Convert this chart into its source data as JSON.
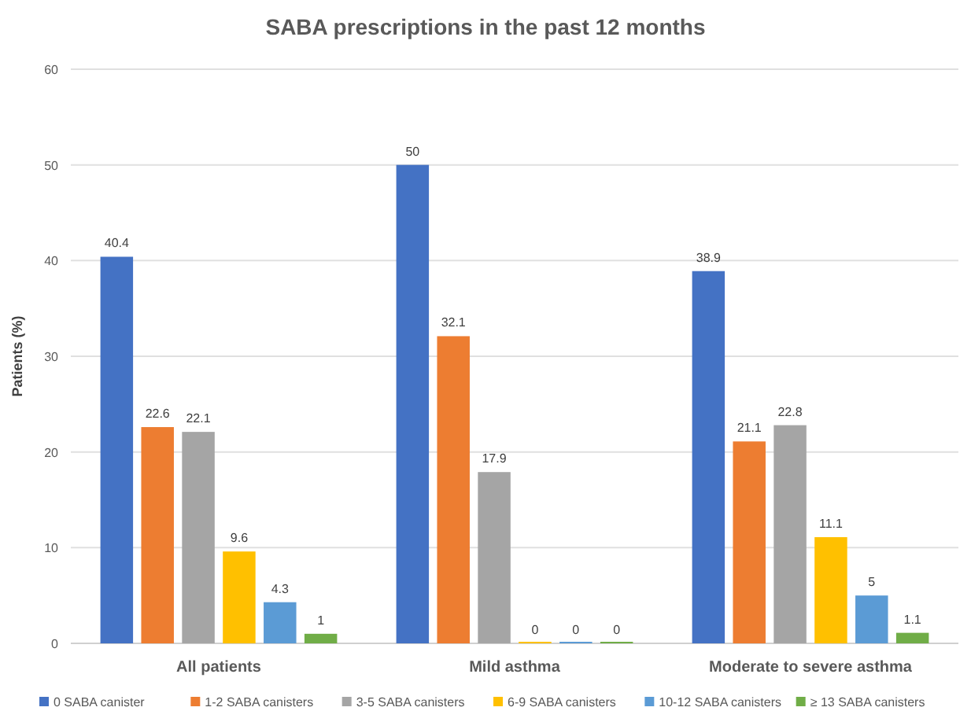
{
  "chart_data": {
    "type": "bar",
    "title": "SABA prescriptions in the past 12 months",
    "ylabel": "Patients (%)",
    "categories": [
      "All patients",
      "Mild asthma",
      "Moderate to severe asthma"
    ],
    "series": [
      {
        "name": "0 SABA canister",
        "color": "#4472c4",
        "values": [
          40.4,
          50,
          38.9
        ]
      },
      {
        "name": "1-2 SABA canisters",
        "color": "#ed7d31",
        "values": [
          22.6,
          32.1,
          21.1
        ]
      },
      {
        "name": "3-5 SABA canisters",
        "color": "#a5a5a5",
        "values": [
          22.1,
          17.9,
          22.8
        ]
      },
      {
        "name": "6-9 SABA canisters",
        "color": "#ffc000",
        "values": [
          9.6,
          0,
          11.1
        ]
      },
      {
        "name": "10-12 SABA canisters",
        "color": "#5b9bd5",
        "values": [
          4.3,
          0,
          5
        ]
      },
      {
        "name": "≥ 13 SABA canisters",
        "color": "#70ad47",
        "values": [
          1,
          0,
          1.1
        ]
      }
    ],
    "ylim": [
      0,
      60
    ],
    "yticks": [
      0,
      10,
      20,
      30,
      40,
      50,
      60
    ],
    "grid": "y",
    "legend": "bottom",
    "data_labels": true
  }
}
